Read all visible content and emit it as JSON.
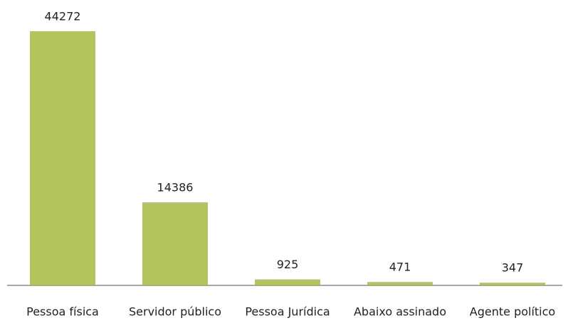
{
  "chart_data": {
    "type": "bar",
    "categories": [
      "Pessoa física",
      "Servidor público",
      "Pessoa Jurídica",
      "Abaixo assinado",
      "Agente político"
    ],
    "values": [
      44272,
      14386,
      925,
      471,
      347
    ],
    "color": "#b5c55e"
  }
}
